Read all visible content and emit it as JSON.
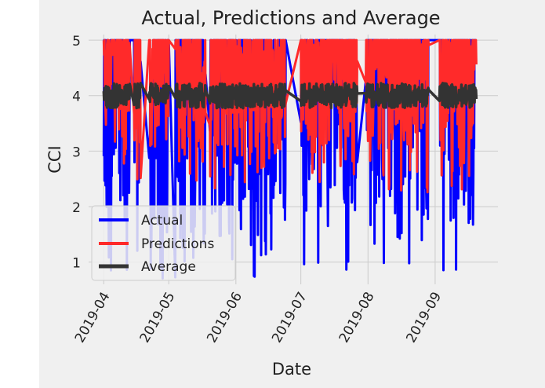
{
  "chart_data": {
    "type": "line",
    "title": "Actual, Predictions and Average",
    "xlabel": "Date",
    "ylabel": "CCI",
    "ylim": [
      0.6,
      5.1
    ],
    "yticks": [
      1,
      2,
      3,
      4,
      5
    ],
    "ytick_labels": [
      "1",
      "2",
      "3",
      "4",
      "5"
    ],
    "xlim": [
      "2019-03-25",
      "2019-09-30"
    ],
    "xticks": [
      "2019-04-01",
      "2019-05-01",
      "2019-06-01",
      "2019-07-01",
      "2019-08-01",
      "2019-09-01"
    ],
    "xtick_labels": [
      "2019-04",
      "2019-05",
      "2019-06",
      "2019-07",
      "2019-08",
      "2019-09"
    ],
    "grid": true,
    "legend_position": "lower-left",
    "date_range": [
      "2019-04-01",
      "2019-09-21"
    ],
    "active_periods": [
      [
        "2019-04-01",
        "2019-04-12"
      ],
      [
        "2019-04-15",
        "2019-04-17"
      ],
      [
        "2019-04-22",
        "2019-04-30"
      ],
      [
        "2019-05-04",
        "2019-05-17"
      ],
      [
        "2019-05-20",
        "2019-06-23"
      ],
      [
        "2019-07-01",
        "2019-07-26"
      ],
      [
        "2019-07-31",
        "2019-08-28"
      ],
      [
        "2019-09-03",
        "2019-09-19"
      ]
    ],
    "series": [
      {
        "name": "Actual",
        "color": "#0000ff",
        "value_range": [
          0.7,
          5.0
        ]
      },
      {
        "name": "Predictions",
        "color": "#ff2a2a",
        "value_range": [
          1.8,
          5.0
        ]
      },
      {
        "name": "Average",
        "color": "#333333",
        "value_range": [
          3.8,
          4.25
        ],
        "mean": 4.0
      }
    ]
  }
}
